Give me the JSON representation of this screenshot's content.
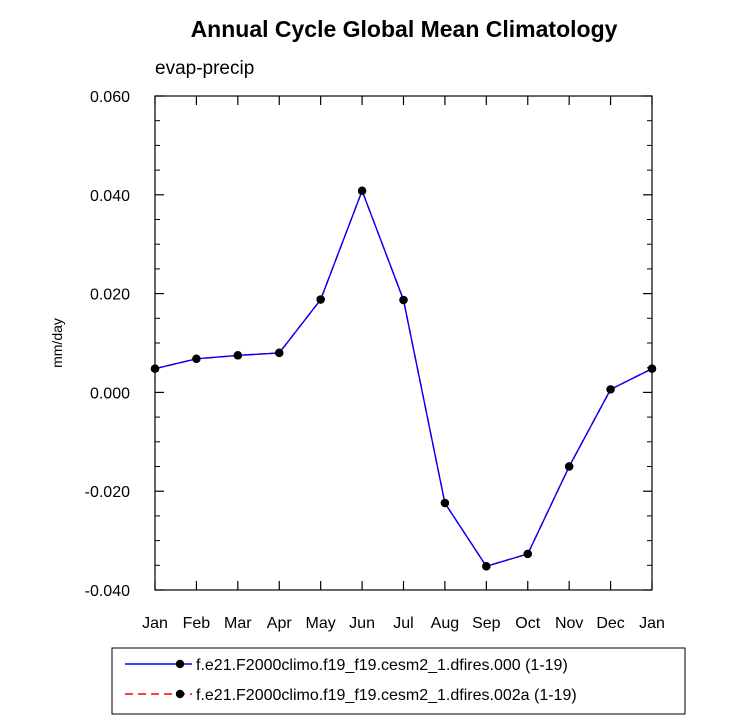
{
  "chart_data": {
    "type": "line",
    "title": "Annual Cycle Global Mean Climatology",
    "subtitle": "evap-precip",
    "xlabel": "",
    "ylabel": "mm/day",
    "categories": [
      "Jan",
      "Feb",
      "Mar",
      "Apr",
      "May",
      "Jun",
      "Jul",
      "Aug",
      "Sep",
      "Oct",
      "Nov",
      "Dec",
      "Jan"
    ],
    "ylim": [
      -0.04,
      0.06
    ],
    "yticks": [
      -0.04,
      -0.02,
      0.0,
      0.02,
      0.04,
      0.06
    ],
    "ytick_labels": [
      "-0.040",
      "-0.020",
      "0.000",
      "0.020",
      "0.040",
      "0.060"
    ],
    "grid": false,
    "legend_position": "bottom",
    "series": [
      {
        "name": "f.e21.F2000climo.f19_f19.cesm2_1.dfires.000 (1-19)",
        "color": "#0000ff",
        "style": "solid",
        "marker": "dot",
        "values": [
          0.0048,
          0.0068,
          0.0075,
          0.008,
          0.0188,
          0.0408,
          0.0187,
          -0.0224,
          -0.0352,
          -0.0327,
          -0.015,
          0.0006,
          0.0048
        ]
      },
      {
        "name": "f.e21.F2000climo.f19_f19.cesm2_1.dfires.002a (1-19)",
        "color": "#ff0000",
        "style": "dashed",
        "marker": "dot",
        "values": [
          0.0048,
          0.0068,
          0.0075,
          0.008,
          0.0188,
          0.0408,
          0.0187,
          -0.0224,
          -0.0352,
          -0.0327,
          -0.015,
          0.0006,
          0.0048
        ]
      }
    ]
  }
}
